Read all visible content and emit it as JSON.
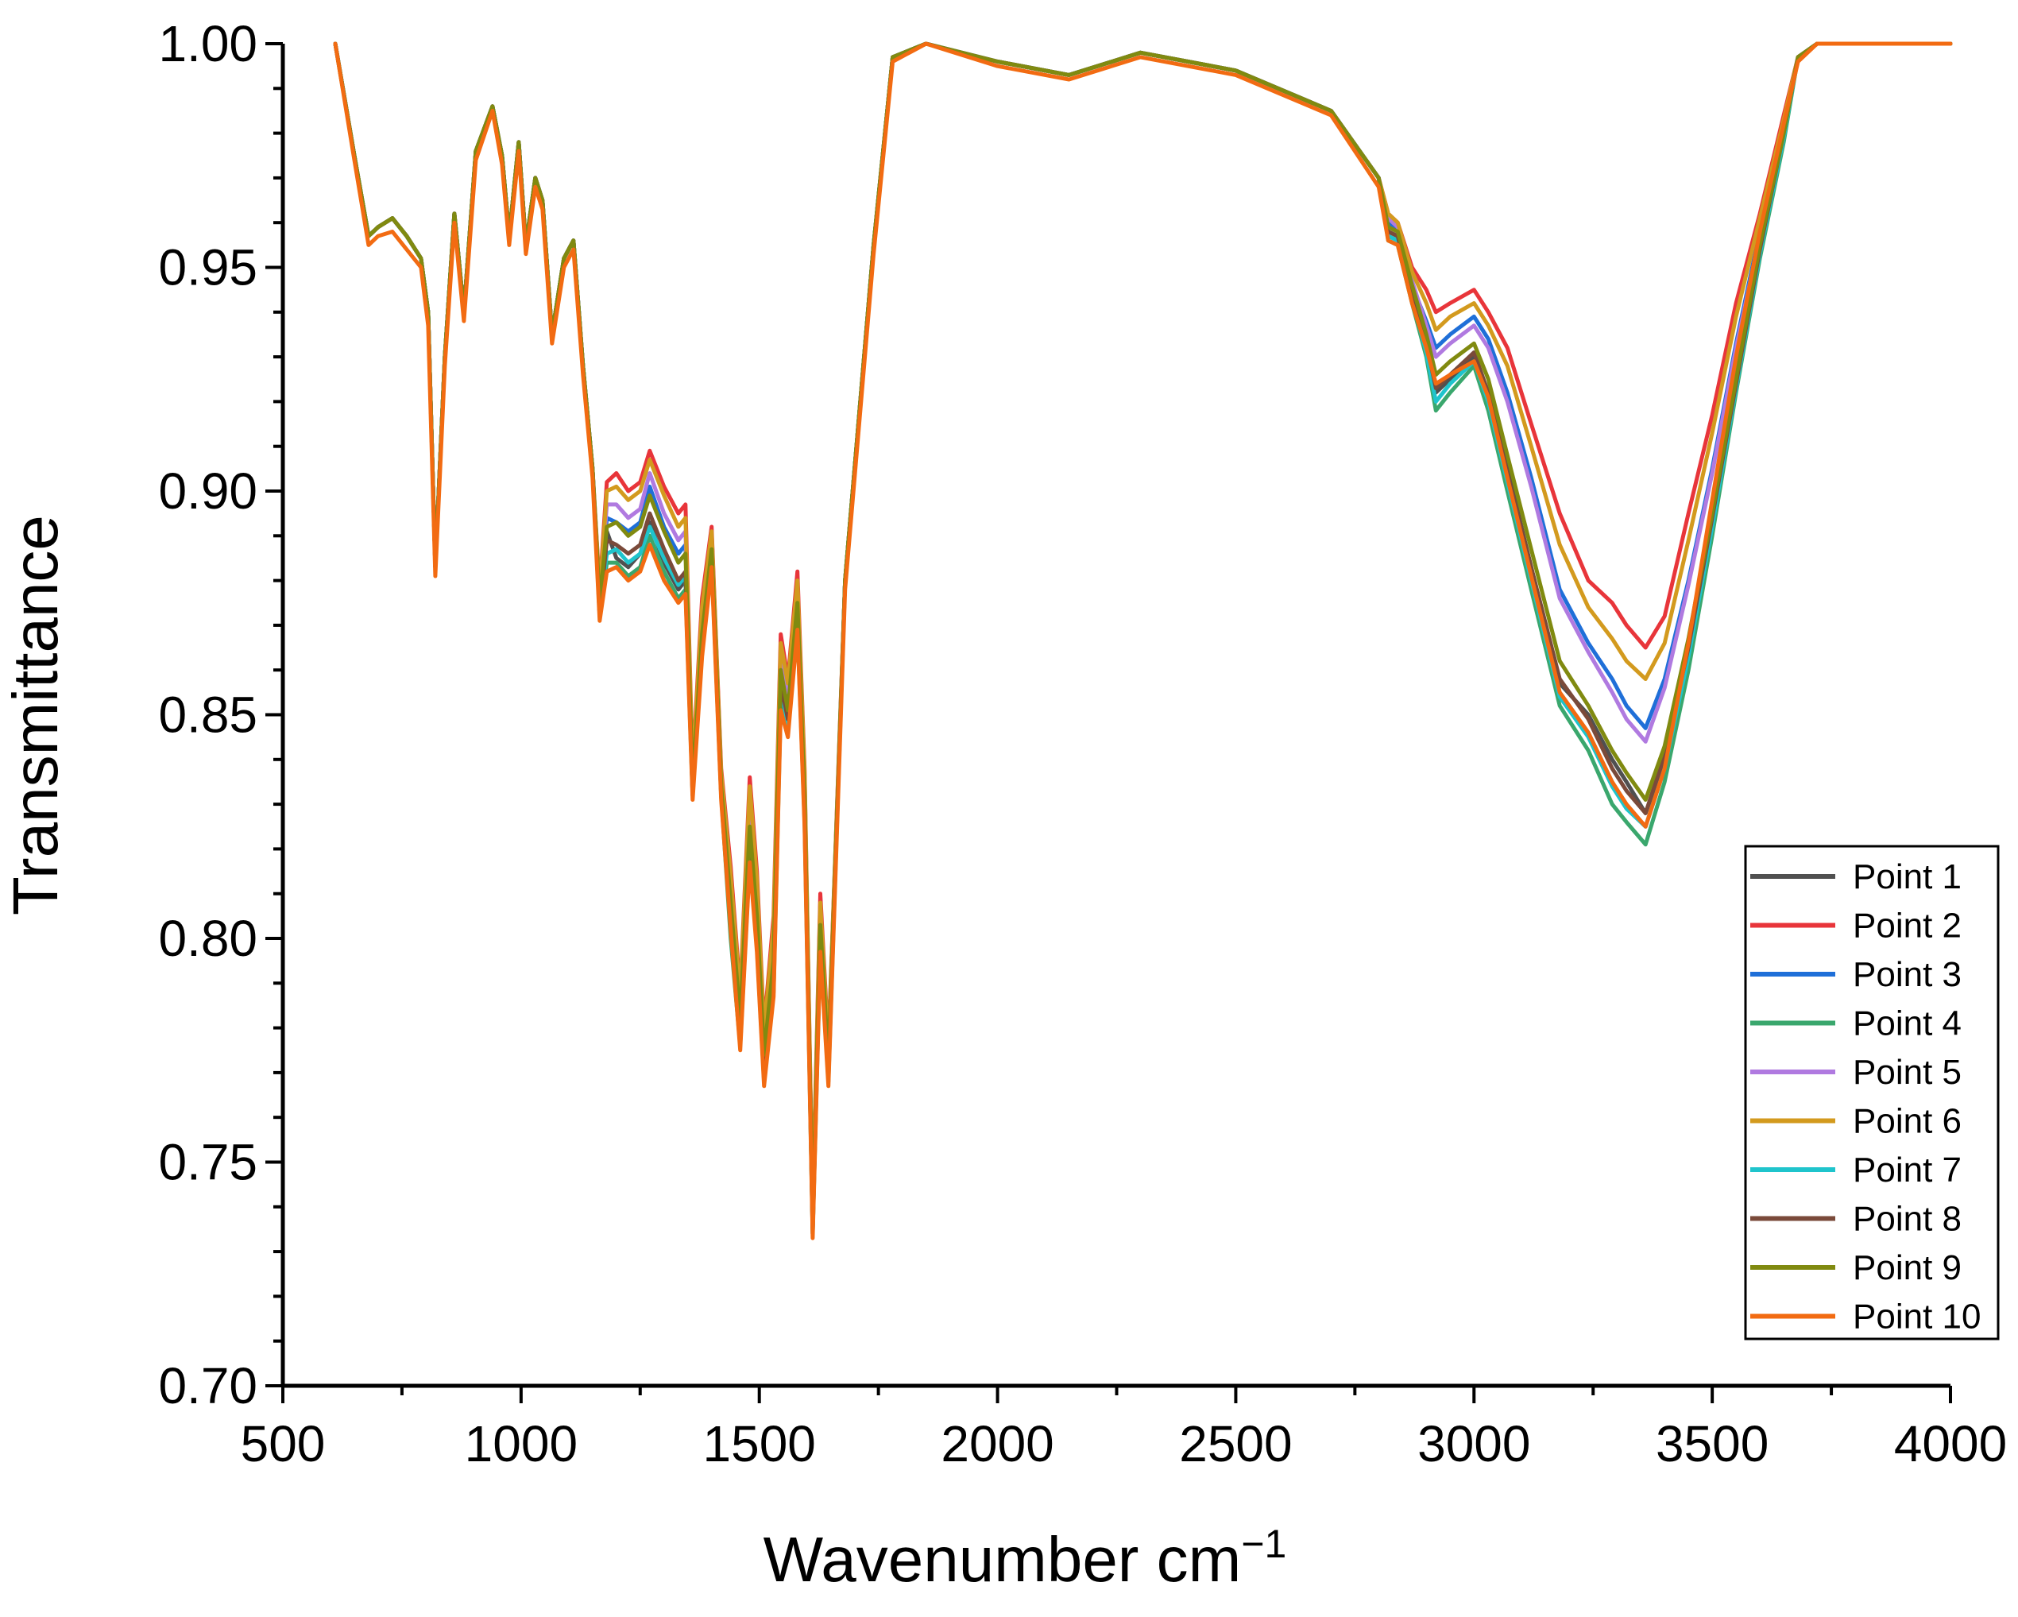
{
  "chart_data": {
    "type": "line",
    "xlabel": "Wavenumber cm",
    "xlabel_superscript": "−1",
    "ylabel": "Transmittance",
    "xlim": [
      500,
      4000
    ],
    "ylim": [
      0.7,
      1.0
    ],
    "x_ticks": [
      "500",
      "1000",
      "1500",
      "2000",
      "2500",
      "3000",
      "3500",
      "4000"
    ],
    "x_tick_values": [
      500,
      1000,
      1500,
      2000,
      2500,
      3000,
      3500,
      4000
    ],
    "y_ticks": [
      "0.70",
      "0.75",
      "0.80",
      "0.85",
      "0.90",
      "0.95",
      "1.00"
    ],
    "y_tick_values": [
      0.7,
      0.75,
      0.8,
      0.85,
      0.9,
      0.95,
      1.0
    ],
    "grid": false,
    "legend_position": "bottom-right",
    "x": [
      610,
      650,
      680,
      700,
      730,
      760,
      790,
      805,
      820,
      840,
      860,
      880,
      905,
      940,
      960,
      975,
      995,
      1010,
      1030,
      1045,
      1065,
      1090,
      1110,
      1130,
      1150,
      1165,
      1180,
      1200,
      1225,
      1250,
      1270,
      1300,
      1330,
      1345,
      1360,
      1380,
      1400,
      1420,
      1440,
      1460,
      1480,
      1495,
      1510,
      1530,
      1545,
      1560,
      1580,
      1595,
      1612,
      1628,
      1645,
      1680,
      1740,
      1780,
      1850,
      2000,
      2150,
      2300,
      2500,
      2700,
      2800,
      2820,
      2840,
      2870,
      2900,
      2920,
      2950,
      3000,
      3030,
      3070,
      3120,
      3180,
      3240,
      3290,
      3320,
      3360,
      3400,
      3450,
      3500,
      3550,
      3600,
      3650,
      3680,
      3720,
      3800,
      3900,
      4000
    ],
    "series": [
      {
        "name": "Point 1",
        "color": "#505050",
        "values": [
          1.0,
          0.975,
          0.957,
          0.959,
          0.961,
          0.957,
          0.952,
          0.94,
          0.883,
          0.93,
          0.962,
          0.94,
          0.976,
          0.986,
          0.975,
          0.957,
          0.978,
          0.955,
          0.97,
          0.965,
          0.935,
          0.952,
          0.956,
          0.928,
          0.905,
          0.872,
          0.891,
          0.885,
          0.883,
          0.886,
          0.893,
          0.884,
          0.878,
          0.88,
          0.832,
          0.865,
          0.885,
          0.832,
          0.803,
          0.778,
          0.82,
          0.8,
          0.77,
          0.79,
          0.855,
          0.848,
          0.872,
          0.828,
          0.734,
          0.8,
          0.77,
          0.88,
          0.955,
          0.997,
          1.0,
          0.996,
          0.993,
          0.998,
          0.994,
          0.985,
          0.97,
          0.958,
          0.957,
          0.945,
          0.932,
          0.922,
          0.925,
          0.93,
          0.922,
          0.905,
          0.883,
          0.857,
          0.85,
          0.84,
          0.835,
          0.828,
          0.84,
          0.865,
          0.895,
          0.925,
          0.955,
          0.98,
          0.997,
          1.0,
          1.0,
          1.0,
          1.0
        ]
      },
      {
        "name": "Point 2",
        "color": "#e8353a",
        "values": [
          1.0,
          0.975,
          0.957,
          0.959,
          0.961,
          0.957,
          0.952,
          0.94,
          0.883,
          0.93,
          0.962,
          0.94,
          0.976,
          0.986,
          0.975,
          0.957,
          0.978,
          0.955,
          0.97,
          0.965,
          0.935,
          0.952,
          0.956,
          0.928,
          0.905,
          0.878,
          0.902,
          0.904,
          0.9,
          0.902,
          0.909,
          0.901,
          0.895,
          0.897,
          0.838,
          0.876,
          0.892,
          0.838,
          0.816,
          0.788,
          0.836,
          0.815,
          0.78,
          0.805,
          0.868,
          0.858,
          0.882,
          0.838,
          0.74,
          0.81,
          0.776,
          0.88,
          0.955,
          0.997,
          1.0,
          0.996,
          0.993,
          0.998,
          0.994,
          0.985,
          0.97,
          0.962,
          0.96,
          0.95,
          0.945,
          0.94,
          0.942,
          0.945,
          0.94,
          0.932,
          0.915,
          0.895,
          0.88,
          0.875,
          0.87,
          0.865,
          0.872,
          0.895,
          0.917,
          0.942,
          0.962,
          0.984,
          0.997,
          1.0,
          1.0,
          1.0,
          1.0
        ]
      },
      {
        "name": "Point 3",
        "color": "#1f6fd8",
        "values": [
          1.0,
          0.975,
          0.957,
          0.959,
          0.961,
          0.957,
          0.952,
          0.94,
          0.883,
          0.93,
          0.962,
          0.94,
          0.976,
          0.986,
          0.975,
          0.957,
          0.978,
          0.955,
          0.97,
          0.965,
          0.935,
          0.952,
          0.956,
          0.928,
          0.905,
          0.874,
          0.894,
          0.893,
          0.891,
          0.893,
          0.901,
          0.892,
          0.886,
          0.888,
          0.835,
          0.87,
          0.888,
          0.835,
          0.81,
          0.785,
          0.828,
          0.808,
          0.776,
          0.798,
          0.862,
          0.853,
          0.877,
          0.833,
          0.737,
          0.805,
          0.773,
          0.88,
          0.955,
          0.997,
          1.0,
          0.996,
          0.993,
          0.998,
          0.994,
          0.985,
          0.97,
          0.96,
          0.958,
          0.946,
          0.938,
          0.932,
          0.935,
          0.939,
          0.934,
          0.922,
          0.903,
          0.878,
          0.866,
          0.858,
          0.852,
          0.847,
          0.858,
          0.88,
          0.905,
          0.933,
          0.958,
          0.982,
          0.997,
          1.0,
          1.0,
          1.0,
          1.0
        ]
      },
      {
        "name": "Point 4",
        "color": "#3aa76d",
        "values": [
          1.0,
          0.975,
          0.957,
          0.959,
          0.961,
          0.957,
          0.952,
          0.94,
          0.883,
          0.93,
          0.962,
          0.94,
          0.976,
          0.986,
          0.975,
          0.957,
          0.978,
          0.955,
          0.97,
          0.965,
          0.935,
          0.952,
          0.956,
          0.928,
          0.905,
          0.872,
          0.884,
          0.884,
          0.881,
          0.883,
          0.89,
          0.882,
          0.876,
          0.878,
          0.832,
          0.864,
          0.884,
          0.832,
          0.8,
          0.776,
          0.818,
          0.798,
          0.768,
          0.788,
          0.852,
          0.846,
          0.87,
          0.826,
          0.734,
          0.798,
          0.768,
          0.88,
          0.955,
          0.997,
          1.0,
          0.996,
          0.993,
          0.998,
          0.994,
          0.985,
          0.97,
          0.956,
          0.955,
          0.942,
          0.93,
          0.918,
          0.922,
          0.928,
          0.918,
          0.9,
          0.878,
          0.852,
          0.842,
          0.83,
          0.826,
          0.821,
          0.835,
          0.86,
          0.89,
          0.922,
          0.952,
          0.978,
          0.997,
          1.0,
          1.0,
          1.0,
          1.0
        ]
      },
      {
        "name": "Point 5",
        "color": "#b07ae0",
        "values": [
          1.0,
          0.975,
          0.957,
          0.959,
          0.961,
          0.957,
          0.952,
          0.94,
          0.883,
          0.93,
          0.962,
          0.94,
          0.976,
          0.986,
          0.975,
          0.957,
          0.978,
          0.955,
          0.97,
          0.965,
          0.935,
          0.952,
          0.956,
          0.928,
          0.905,
          0.876,
          0.897,
          0.897,
          0.894,
          0.896,
          0.904,
          0.895,
          0.889,
          0.891,
          0.836,
          0.872,
          0.89,
          0.836,
          0.812,
          0.786,
          0.831,
          0.811,
          0.778,
          0.8,
          0.864,
          0.855,
          0.879,
          0.835,
          0.738,
          0.807,
          0.774,
          0.88,
          0.955,
          0.997,
          1.0,
          0.996,
          0.993,
          0.998,
          0.994,
          0.985,
          0.97,
          0.961,
          0.959,
          0.947,
          0.937,
          0.93,
          0.933,
          0.937,
          0.932,
          0.92,
          0.901,
          0.876,
          0.864,
          0.855,
          0.849,
          0.844,
          0.856,
          0.879,
          0.904,
          0.932,
          0.957,
          0.981,
          0.997,
          1.0,
          1.0,
          1.0,
          1.0
        ]
      },
      {
        "name": "Point 6",
        "color": "#d39a1e",
        "values": [
          1.0,
          0.975,
          0.957,
          0.959,
          0.961,
          0.957,
          0.952,
          0.94,
          0.883,
          0.93,
          0.962,
          0.94,
          0.976,
          0.986,
          0.975,
          0.957,
          0.978,
          0.955,
          0.97,
          0.965,
          0.935,
          0.952,
          0.956,
          0.928,
          0.905,
          0.877,
          0.9,
          0.901,
          0.898,
          0.9,
          0.907,
          0.899,
          0.892,
          0.894,
          0.837,
          0.874,
          0.891,
          0.837,
          0.814,
          0.787,
          0.834,
          0.813,
          0.779,
          0.803,
          0.866,
          0.857,
          0.88,
          0.837,
          0.739,
          0.808,
          0.775,
          0.88,
          0.955,
          0.997,
          1.0,
          0.996,
          0.993,
          0.998,
          0.994,
          0.985,
          0.97,
          0.962,
          0.96,
          0.949,
          0.942,
          0.936,
          0.939,
          0.942,
          0.937,
          0.928,
          0.91,
          0.888,
          0.874,
          0.867,
          0.862,
          0.858,
          0.866,
          0.889,
          0.913,
          0.939,
          0.961,
          0.983,
          0.997,
          1.0,
          1.0,
          1.0,
          1.0
        ]
      },
      {
        "name": "Point 7",
        "color": "#1fc4cc",
        "values": [
          1.0,
          0.975,
          0.957,
          0.959,
          0.961,
          0.957,
          0.952,
          0.94,
          0.883,
          0.93,
          0.962,
          0.94,
          0.976,
          0.986,
          0.975,
          0.957,
          0.978,
          0.955,
          0.97,
          0.965,
          0.935,
          0.952,
          0.956,
          0.928,
          0.905,
          0.873,
          0.886,
          0.887,
          0.884,
          0.886,
          0.892,
          0.885,
          0.879,
          0.881,
          0.833,
          0.866,
          0.885,
          0.833,
          0.803,
          0.778,
          0.821,
          0.801,
          0.771,
          0.791,
          0.856,
          0.848,
          0.872,
          0.828,
          0.735,
          0.8,
          0.77,
          0.88,
          0.955,
          0.997,
          1.0,
          0.996,
          0.993,
          0.998,
          0.994,
          0.985,
          0.97,
          0.957,
          0.956,
          0.943,
          0.931,
          0.92,
          0.924,
          0.929,
          0.92,
          0.902,
          0.88,
          0.854,
          0.845,
          0.834,
          0.829,
          0.825,
          0.838,
          0.863,
          0.892,
          0.923,
          0.953,
          0.979,
          0.997,
          1.0,
          1.0,
          1.0,
          1.0
        ]
      },
      {
        "name": "Point 8",
        "color": "#7a4a3a",
        "values": [
          1.0,
          0.975,
          0.957,
          0.959,
          0.961,
          0.957,
          0.952,
          0.94,
          0.883,
          0.93,
          0.962,
          0.94,
          0.976,
          0.986,
          0.975,
          0.957,
          0.978,
          0.955,
          0.97,
          0.965,
          0.935,
          0.952,
          0.956,
          0.928,
          0.905,
          0.873,
          0.889,
          0.888,
          0.886,
          0.888,
          0.895,
          0.887,
          0.88,
          0.882,
          0.833,
          0.866,
          0.886,
          0.833,
          0.805,
          0.78,
          0.822,
          0.802,
          0.772,
          0.792,
          0.857,
          0.849,
          0.873,
          0.829,
          0.735,
          0.801,
          0.771,
          0.88,
          0.955,
          0.997,
          1.0,
          0.996,
          0.993,
          0.998,
          0.994,
          0.985,
          0.97,
          0.958,
          0.957,
          0.944,
          0.933,
          0.923,
          0.926,
          0.931,
          0.922,
          0.904,
          0.883,
          0.858,
          0.849,
          0.838,
          0.833,
          0.828,
          0.841,
          0.865,
          0.894,
          0.924,
          0.954,
          0.98,
          0.997,
          1.0,
          1.0,
          1.0,
          1.0
        ]
      },
      {
        "name": "Point 9",
        "color": "#808a10",
        "values": [
          1.0,
          0.975,
          0.957,
          0.959,
          0.961,
          0.957,
          0.952,
          0.94,
          0.883,
          0.93,
          0.962,
          0.94,
          0.976,
          0.986,
          0.975,
          0.957,
          0.978,
          0.955,
          0.97,
          0.965,
          0.935,
          0.952,
          0.956,
          0.928,
          0.905,
          0.875,
          0.892,
          0.893,
          0.89,
          0.892,
          0.899,
          0.891,
          0.884,
          0.886,
          0.834,
          0.868,
          0.887,
          0.834,
          0.808,
          0.782,
          0.825,
          0.805,
          0.774,
          0.795,
          0.86,
          0.851,
          0.875,
          0.831,
          0.736,
          0.803,
          0.772,
          0.88,
          0.955,
          0.997,
          1.0,
          0.996,
          0.993,
          0.998,
          0.994,
          0.985,
          0.97,
          0.959,
          0.958,
          0.946,
          0.935,
          0.926,
          0.929,
          0.933,
          0.925,
          0.908,
          0.887,
          0.862,
          0.852,
          0.842,
          0.837,
          0.831,
          0.843,
          0.867,
          0.895,
          0.925,
          0.955,
          0.98,
          0.997,
          1.0,
          1.0,
          1.0,
          1.0
        ]
      },
      {
        "name": "Point 10",
        "color": "#f26b12",
        "values": [
          1.0,
          0.974,
          0.955,
          0.957,
          0.958,
          0.954,
          0.95,
          0.937,
          0.881,
          0.928,
          0.96,
          0.938,
          0.974,
          0.985,
          0.973,
          0.955,
          0.976,
          0.953,
          0.968,
          0.963,
          0.933,
          0.95,
          0.954,
          0.926,
          0.903,
          0.871,
          0.882,
          0.883,
          0.88,
          0.882,
          0.888,
          0.88,
          0.875,
          0.877,
          0.831,
          0.863,
          0.883,
          0.831,
          0.802,
          0.775,
          0.817,
          0.797,
          0.767,
          0.787,
          0.851,
          0.845,
          0.869,
          0.825,
          0.733,
          0.797,
          0.767,
          0.878,
          0.953,
          0.996,
          1.0,
          0.995,
          0.992,
          0.997,
          0.993,
          0.984,
          0.968,
          0.956,
          0.955,
          0.942,
          0.932,
          0.924,
          0.926,
          0.929,
          0.921,
          0.903,
          0.881,
          0.855,
          0.846,
          0.835,
          0.83,
          0.825,
          0.838,
          0.866,
          0.898,
          0.93,
          0.958,
          0.982,
          0.996,
          1.0,
          1.0,
          1.0,
          1.0
        ]
      }
    ]
  }
}
